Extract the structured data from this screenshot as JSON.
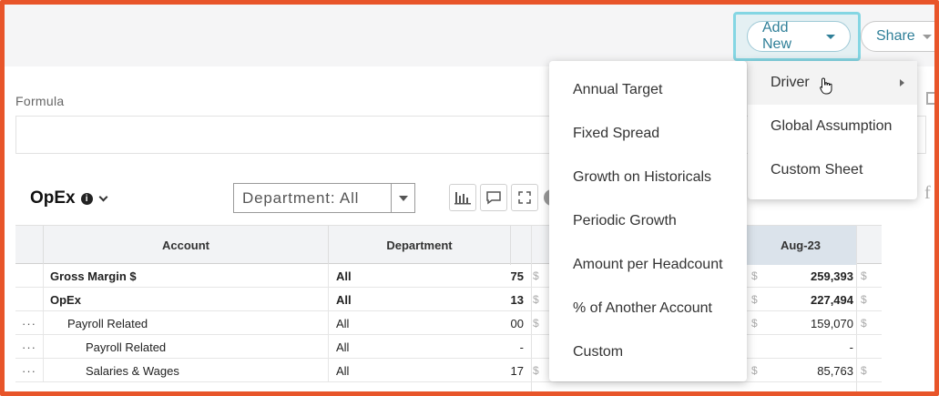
{
  "toolbar": {
    "add_new_label": "Add New",
    "share_label": "Share"
  },
  "formula": {
    "label": "Formula",
    "value": ""
  },
  "sheet": {
    "title": "OpEx",
    "department_filter": "Department: All"
  },
  "grid": {
    "columns": {
      "account": "Account",
      "department": "Department",
      "month": "Aug-23"
    },
    "rows": [
      {
        "account": "Gross Margin $",
        "department": "All",
        "partial": "75",
        "value": "259,393",
        "bold": true,
        "indent": 0,
        "dots": ""
      },
      {
        "account": "OpEx",
        "department": "All",
        "partial": "13",
        "value": "227,494",
        "bold": true,
        "indent": 0,
        "dots": ""
      },
      {
        "account": "Payroll Related",
        "department": "All",
        "partial": "00",
        "value": "159,070",
        "bold": false,
        "indent": 1,
        "dots": "···"
      },
      {
        "account": "Payroll Related",
        "department": "All",
        "partial": "-",
        "value": "-",
        "bold": false,
        "indent": 2,
        "dots": "···"
      },
      {
        "account": "Salaries & Wages",
        "department": "All",
        "partial": "17",
        "value": "85,763",
        "bold": false,
        "indent": 2,
        "dots": "···"
      }
    ],
    "currency_symbol": "$"
  },
  "add_new_menu": {
    "items": [
      "Driver",
      "Global Assumption",
      "Custom Sheet"
    ]
  },
  "driver_submenu": {
    "items": [
      "Annual Target",
      "Fixed Spread",
      "Growth on Historicals",
      "Periodic Growth",
      "Amount per Headcount",
      "% of Another Account",
      "Custom"
    ]
  },
  "colors": {
    "frame": "#e8552a",
    "accent": "#2f7f98",
    "focus_ring": "#84d6e3"
  }
}
